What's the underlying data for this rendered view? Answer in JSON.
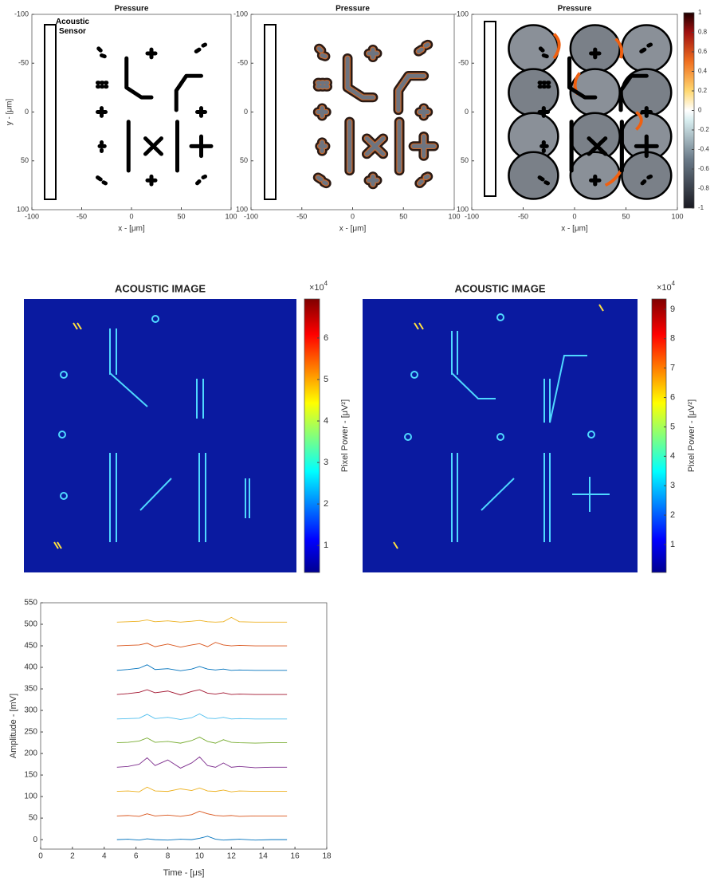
{
  "chart_data": [
    {
      "type": "heatmap",
      "title": "Pressure",
      "xlabel": "x - [μm]",
      "ylabel": "y - [μm]",
      "annotation": "Acoustic Sensor",
      "xlim": [
        -100,
        100
      ],
      "ylim": [
        100,
        -100
      ],
      "xticks": [
        -100,
        -50,
        0,
        50,
        100
      ],
      "yticks": [
        -100,
        -50,
        0,
        50,
        100
      ]
    },
    {
      "type": "heatmap",
      "title": "Pressure",
      "xlabel": "x - [μm]",
      "xlim": [
        -100,
        100
      ],
      "ylim": [
        100,
        -100
      ],
      "xticks": [
        -100,
        -50,
        0,
        50,
        100
      ],
      "yticks": [
        -100,
        -50,
        0,
        50,
        100
      ]
    },
    {
      "type": "heatmap",
      "title": "Pressure",
      "xlabel": "x - [μm]",
      "xlim": [
        -100,
        100
      ],
      "ylim": [
        100,
        -100
      ],
      "xticks": [
        -100,
        -50,
        0,
        50,
        100
      ],
      "yticks": [
        -100,
        -50,
        0,
        50,
        100
      ],
      "colorbar": {
        "lim": [
          -1,
          1
        ],
        "ticks": [
          1,
          0.8,
          0.6,
          0.4,
          0.2,
          0,
          -0.2,
          -0.4,
          -0.6,
          -0.8,
          -1
        ]
      }
    },
    {
      "type": "heatmap",
      "title": "ACOUSTIC IMAGE",
      "colorbar": {
        "label": "Pixel Power - [μV²]",
        "exponent_base": "×10",
        "exponent_power": "4",
        "lim": [
          0.35,
          6.94
        ],
        "ticks": [
          1,
          2,
          3,
          4,
          5,
          6
        ]
      }
    },
    {
      "type": "heatmap",
      "title": "ACOUSTIC IMAGE",
      "colorbar": {
        "label": "Pixel Power - [μV²]",
        "exponent_base": "×10",
        "exponent_power": "4",
        "lim": [
          0.05,
          9.35
        ],
        "ticks": [
          1,
          2,
          3,
          4,
          5,
          6,
          7,
          8,
          9
        ]
      }
    },
    {
      "type": "line",
      "xlabel": "Time - [μs]",
      "ylabel": "Amplitude - [mV]",
      "xlim": [
        0,
        18
      ],
      "ylim": [
        -22,
        550
      ],
      "xticks": [
        0,
        2,
        4,
        6,
        8,
        10,
        12,
        14,
        16,
        18
      ],
      "yticks": [
        0,
        50,
        100,
        150,
        200,
        250,
        300,
        350,
        400,
        450,
        500,
        550
      ],
      "x": [
        4.8,
        5.5,
        6.2,
        6.7,
        7.2,
        8,
        8.8,
        9.5,
        10,
        10.5,
        11,
        11.5,
        12,
        12.5,
        13.5,
        14.5,
        15.5
      ],
      "series": [
        {
          "color": "#0072bd",
          "values": [
            0,
            1,
            -1,
            2,
            0,
            -1,
            1,
            0,
            3,
            8,
            1,
            -1,
            0,
            1,
            -1,
            0,
            0
          ]
        },
        {
          "color": "#d95319",
          "values": [
            55,
            56,
            54,
            60,
            55,
            57,
            54,
            58,
            66,
            60,
            56,
            55,
            56,
            54,
            55,
            55,
            55
          ]
        },
        {
          "color": "#edb120",
          "values": [
            112,
            113,
            111,
            122,
            113,
            112,
            118,
            114,
            120,
            113,
            112,
            115,
            111,
            113,
            112,
            112,
            112
          ]
        },
        {
          "color": "#7e2f8e",
          "values": [
            168,
            170,
            175,
            190,
            172,
            185,
            166,
            178,
            192,
            172,
            168,
            178,
            168,
            170,
            167,
            168,
            168
          ]
        },
        {
          "color": "#77ac30",
          "values": [
            225,
            226,
            229,
            236,
            226,
            228,
            224,
            230,
            238,
            228,
            224,
            232,
            226,
            225,
            224,
            225,
            225
          ]
        },
        {
          "color": "#4dbeee",
          "values": [
            280,
            281,
            282,
            291,
            281,
            284,
            279,
            283,
            292,
            282,
            281,
            284,
            280,
            281,
            280,
            280,
            280
          ]
        },
        {
          "color": "#a2142f",
          "values": [
            337,
            339,
            342,
            348,
            341,
            345,
            336,
            344,
            348,
            340,
            338,
            341,
            337,
            338,
            337,
            337,
            337
          ]
        },
        {
          "color": "#0072bd",
          "values": [
            393,
            395,
            398,
            406,
            395,
            397,
            392,
            396,
            402,
            396,
            394,
            396,
            393,
            394,
            393,
            393,
            393
          ]
        },
        {
          "color": "#d95319",
          "values": [
            450,
            451,
            452,
            456,
            448,
            454,
            447,
            452,
            455,
            448,
            458,
            452,
            450,
            451,
            450,
            450,
            450
          ]
        },
        {
          "color": "#edb120",
          "values": [
            505,
            506,
            507,
            510,
            506,
            508,
            505,
            507,
            509,
            506,
            505,
            506,
            516,
            506,
            505,
            505,
            505
          ]
        }
      ]
    }
  ]
}
